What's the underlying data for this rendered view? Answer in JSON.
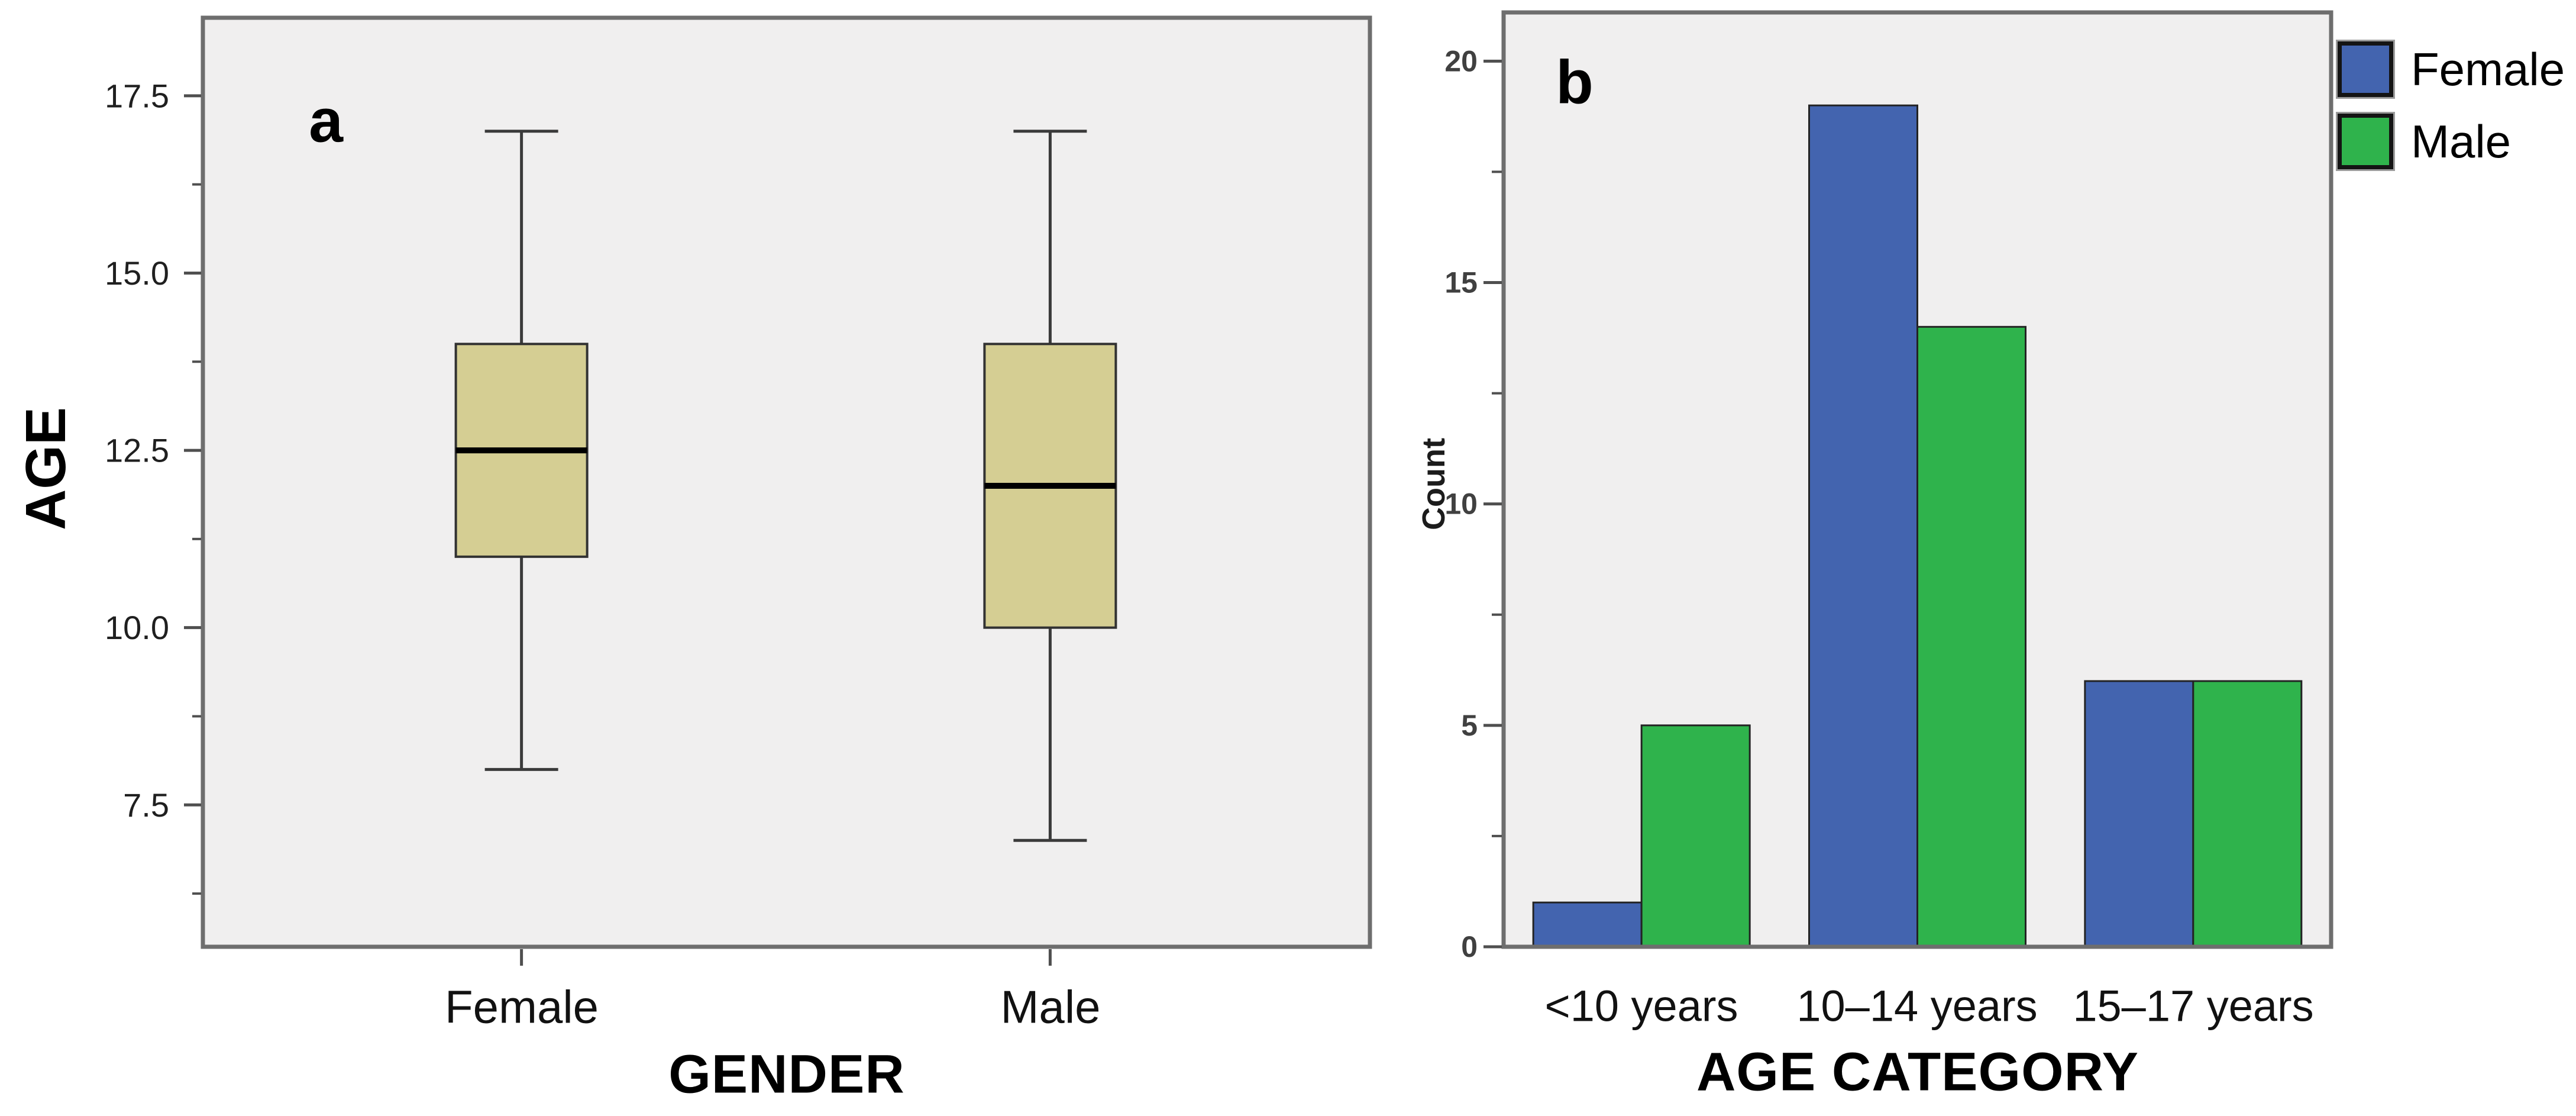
{
  "figure": {
    "background": "#ffffff",
    "panels": [
      {
        "letter": "a"
      },
      {
        "letter": "b"
      }
    ]
  },
  "colors": {
    "plot_background": "#f0efef",
    "frame": "#6e6e6e",
    "tick": "#4f4f4f",
    "box_fill": "#d5ce93",
    "box_border": "#323232",
    "whisker": "#3a3a3a",
    "median": "#000000",
    "bar_border": "#232323",
    "female_bar": "#4364af",
    "male_bar": "#2fb34c"
  },
  "legend": {
    "entries": [
      {
        "label": "Female",
        "color": "#4364af"
      },
      {
        "label": "Male",
        "color": "#2fb34c"
      }
    ]
  },
  "chart_data": [
    {
      "type": "boxplot",
      "panel_label": "a",
      "xlabel": "GENDER",
      "ylabel": "AGE",
      "categories": [
        "Female",
        "Male"
      ],
      "series": [
        {
          "name": "Female",
          "whisker_low": 8,
          "q1": 11,
          "median": 12.5,
          "q3": 14,
          "whisker_high": 17
        },
        {
          "name": "Male",
          "whisker_low": 7,
          "q1": 10,
          "median": 12,
          "q3": 14,
          "whisker_high": 17
        }
      ],
      "ylim": [
        5.5,
        18.6
      ],
      "yticks": [
        7.5,
        10.0,
        12.5,
        15.0,
        17.5
      ],
      "ytick_labels": [
        "7.5",
        "10.0",
        "12.5",
        "15.0",
        "17.5"
      ],
      "minor_yticks": [
        6.25,
        8.75,
        11.25,
        13.75,
        16.25
      ],
      "grid": false,
      "legend_position": "none"
    },
    {
      "type": "bar",
      "panel_label": "b",
      "xlabel": "AGE CATEGORY",
      "ylabel": "Count",
      "categories": [
        "<10 years",
        "10–14 years",
        "15–17 years"
      ],
      "series": [
        {
          "name": "Female",
          "color": "#4364af",
          "values": [
            1,
            19,
            6
          ]
        },
        {
          "name": "Male",
          "color": "#2fb34c",
          "values": [
            5,
            14,
            6
          ]
        }
      ],
      "ylim": [
        0,
        21.1
      ],
      "yticks": [
        0,
        5,
        10,
        15,
        20
      ],
      "ytick_labels": [
        "0",
        "5",
        "10",
        "15",
        "20"
      ],
      "minor_yticks": [
        2.5,
        7.5,
        12.5,
        17.5
      ],
      "grid": false,
      "legend_position": "top-right-outside"
    }
  ]
}
